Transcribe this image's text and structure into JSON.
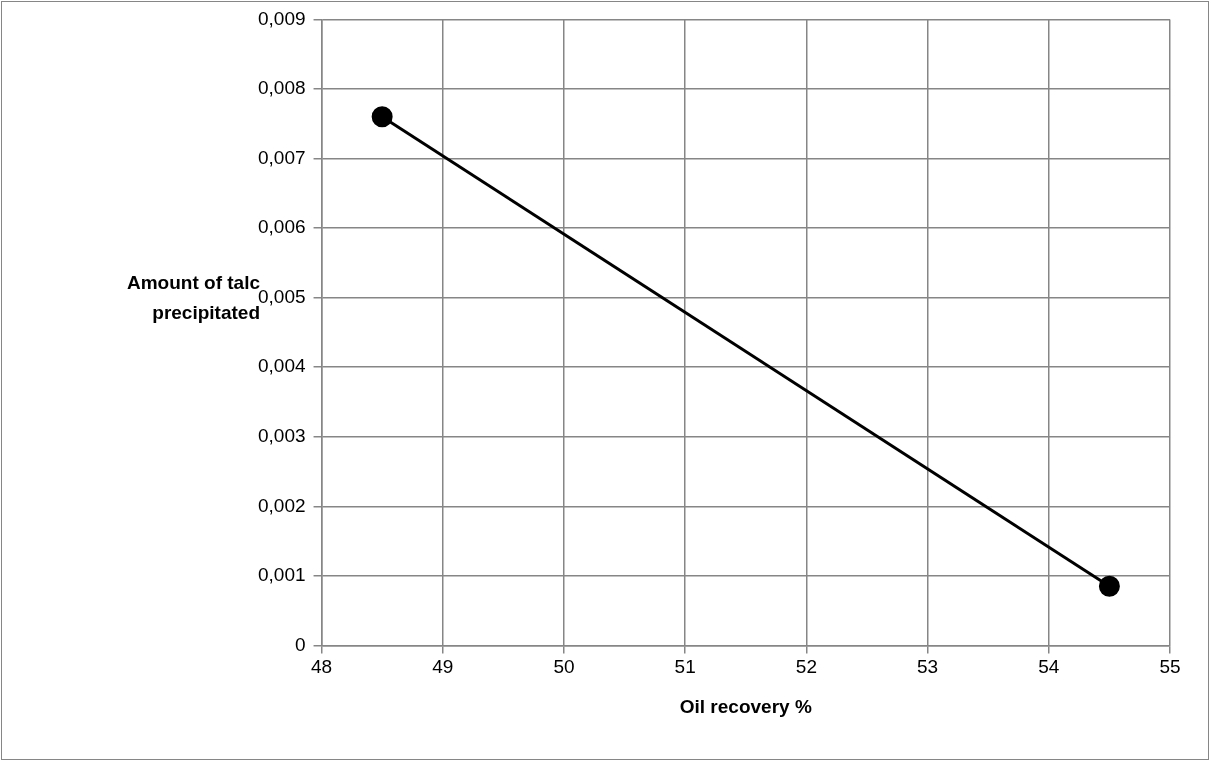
{
  "chart_data": {
    "type": "line",
    "xlabel": "Oil recovery %",
    "ylabel": "Amount of talc precipitated",
    "x": [
      48.5,
      54.5
    ],
    "series": [
      {
        "color": "#000000",
        "values": [
          0.0076,
          0.00085
        ]
      }
    ],
    "xlim": [
      48,
      55
    ],
    "xticks": [
      48,
      49,
      50,
      51,
      52,
      53,
      54,
      55
    ],
    "ylim": [
      0,
      0.009
    ],
    "yticks": [
      0,
      {
        "value": 0.001,
        "label": "0,001"
      },
      {
        "value": 0.002,
        "label": "0,002"
      },
      {
        "value": 0.003,
        "label": "0,003"
      },
      {
        "value": 0.004,
        "label": "0,004"
      },
      {
        "value": 0.005,
        "label": "0,005"
      },
      {
        "value": 0.006,
        "label": "0,006"
      },
      {
        "value": 0.007,
        "label": "0,007"
      },
      {
        "value": 0.008,
        "label": "0,008"
      },
      {
        "value": 0.009,
        "label": "0,009"
      }
    ],
    "grid": true,
    "marker": "circle",
    "line_style": "solid",
    "legend": false
  }
}
